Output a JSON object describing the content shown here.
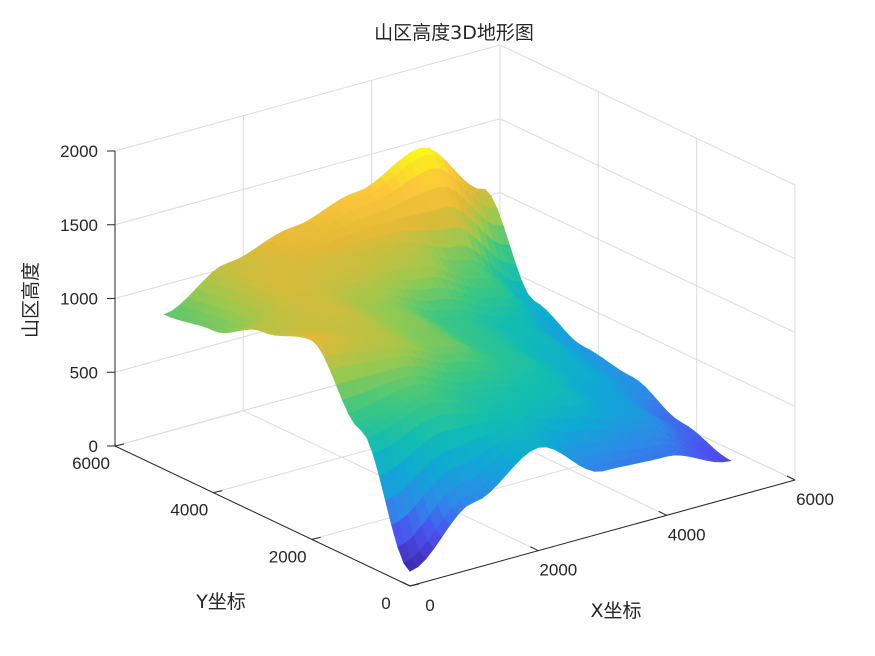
{
  "chart_data": {
    "type": "surface",
    "title": "山区高度3D地形图",
    "xlabel": "X坐标",
    "ylabel": "Y坐标",
    "zlabel": "山区高度",
    "xlim": [
      0,
      6000
    ],
    "ylim": [
      0,
      6000
    ],
    "zlim": [
      0,
      2000
    ],
    "xticks": [
      0,
      2000,
      4000,
      6000
    ],
    "yticks": [
      0,
      2000,
      4000,
      6000
    ],
    "zticks": [
      0,
      500,
      1000,
      1500,
      2000
    ],
    "x": [
      0,
      1000,
      2000,
      3000,
      4000,
      5000
    ],
    "y": [
      0,
      1000,
      2000,
      3000,
      4000,
      5000
    ],
    "z": [
      [
        100,
        450,
        700,
        420,
        400,
        250
      ],
      [
        900,
        1000,
        850,
        800,
        600,
        350
      ],
      [
        1350,
        1250,
        1100,
        900,
        700,
        500
      ],
      [
        1250,
        1300,
        1150,
        950,
        800,
        550
      ],
      [
        1100,
        1320,
        1300,
        1250,
        1050,
        700
      ],
      [
        1050,
        1280,
        1400,
        1520,
        1700,
        1300
      ]
    ],
    "colormap": [
      "#3e26a8",
      "#4d4ff0",
      "#2e8ae8",
      "#0fa8d6",
      "#12bdb2",
      "#3ec780",
      "#99c94f",
      "#e2b937",
      "#fcc73a",
      "#f9fb15"
    ],
    "grid": true
  }
}
